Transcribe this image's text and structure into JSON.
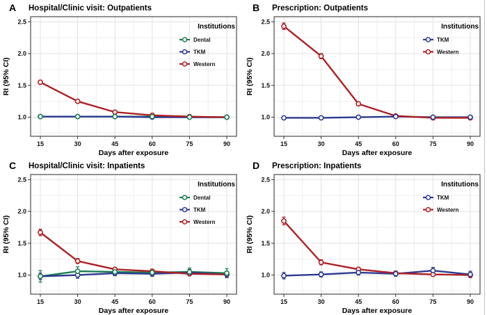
{
  "page": {
    "background": "#ffffff"
  },
  "legend": {
    "title": "Institutions"
  },
  "axes": {
    "x_label": "Days after exposure",
    "y_label": "RI (95% CI)",
    "x_ticks": [
      15,
      30,
      45,
      60,
      75,
      90
    ],
    "y_ticks": [
      "1.0",
      "1.5",
      "2.0",
      "2.5"
    ],
    "ylim": [
      0.7,
      2.58
    ],
    "grid": "major and minor, light gray, on white"
  },
  "colors": {
    "Dental": "#1b7f52",
    "TKM": "#2c3a90",
    "Western": "#ad2024",
    "grid_major": "#e2e2e2",
    "grid_minor": "#efefef",
    "panel_border": "#4a4a4a",
    "tick_text": "#111111",
    "text": "#000000"
  },
  "chart_data": [
    {
      "panel_label": "A",
      "title": "Hospital/Clinic visit: Outpatients",
      "type": "line",
      "x": [
        15,
        30,
        45,
        60,
        75,
        90
      ],
      "xlabel": "Days after exposure",
      "ylabel": "RI (95% CI)",
      "ylim": [
        0.7,
        2.58
      ],
      "legend_title": "Institutions",
      "legend_position": "top-right",
      "series": [
        {
          "name": "Dental",
          "values": [
            1.01,
            1.01,
            1.01,
            1.01,
            1.0,
            1.0
          ],
          "ci": [
            0.02,
            0.02,
            0.02,
            0.02,
            0.02,
            0.02
          ]
        },
        {
          "name": "TKM",
          "values": [
            1.01,
            1.01,
            1.01,
            1.0,
            1.0,
            1.0
          ],
          "ci": [
            0.02,
            0.02,
            0.02,
            0.02,
            0.02,
            0.02
          ]
        },
        {
          "name": "Western",
          "values": [
            1.55,
            1.25,
            1.08,
            1.03,
            1.01,
            1.0
          ],
          "ci": [
            0.03,
            0.02,
            0.02,
            0.02,
            0.02,
            0.02
          ]
        }
      ]
    },
    {
      "panel_label": "B",
      "title": "Prescription: Outpatients",
      "type": "line",
      "x": [
        15,
        30,
        45,
        60,
        75,
        90
      ],
      "xlabel": "Days after exposure",
      "ylabel": "RI (95% CI)",
      "ylim": [
        0.7,
        2.58
      ],
      "legend_title": "Institutions",
      "legend_position": "top-right",
      "series": [
        {
          "name": "TKM",
          "values": [
            0.99,
            0.99,
            1.0,
            1.01,
            1.0,
            1.0
          ],
          "ci": [
            0.02,
            0.02,
            0.02,
            0.02,
            0.02,
            0.02
          ]
        },
        {
          "name": "Western",
          "values": [
            2.43,
            1.96,
            1.21,
            1.02,
            0.99,
            0.99
          ],
          "ci": [
            0.05,
            0.04,
            0.03,
            0.02,
            0.02,
            0.02
          ]
        }
      ]
    },
    {
      "panel_label": "C",
      "title": "Hospital/Clinic visit: Inpatients",
      "type": "line",
      "x": [
        15,
        30,
        45,
        60,
        75,
        90
      ],
      "xlabel": "Days after exposure",
      "ylabel": "RI (95% CI)",
      "ylim": [
        0.7,
        2.58
      ],
      "legend_title": "Institutions",
      "legend_position": "top-right",
      "series": [
        {
          "name": "Dental",
          "values": [
            0.98,
            1.06,
            1.05,
            1.04,
            1.05,
            1.03
          ],
          "ci": [
            0.09,
            0.07,
            0.05,
            0.05,
            0.06,
            0.07
          ]
        },
        {
          "name": "TKM",
          "values": [
            0.98,
            1.0,
            1.03,
            1.02,
            1.04,
            1.01
          ],
          "ci": [
            0.05,
            0.05,
            0.04,
            0.04,
            0.05,
            0.05
          ]
        },
        {
          "name": "Western",
          "values": [
            1.67,
            1.22,
            1.09,
            1.06,
            1.02,
            1.01
          ],
          "ci": [
            0.05,
            0.04,
            0.03,
            0.03,
            0.03,
            0.04
          ]
        }
      ]
    },
    {
      "panel_label": "D",
      "title": "Prescription: Inpatients",
      "type": "line",
      "x": [
        15,
        30,
        45,
        60,
        75,
        90
      ],
      "xlabel": "Days after exposure",
      "ylabel": "RI (95% CI)",
      "ylim": [
        0.7,
        2.58
      ],
      "legend_title": "Institutions",
      "legend_position": "top-right",
      "series": [
        {
          "name": "TKM",
          "values": [
            0.99,
            1.01,
            1.04,
            1.02,
            1.07,
            1.01
          ],
          "ci": [
            0.05,
            0.04,
            0.04,
            0.04,
            0.05,
            0.05
          ]
        },
        {
          "name": "Western",
          "values": [
            1.85,
            1.2,
            1.09,
            1.03,
            1.01,
            1.0
          ],
          "ci": [
            0.06,
            0.04,
            0.03,
            0.03,
            0.03,
            0.04
          ]
        }
      ]
    }
  ]
}
